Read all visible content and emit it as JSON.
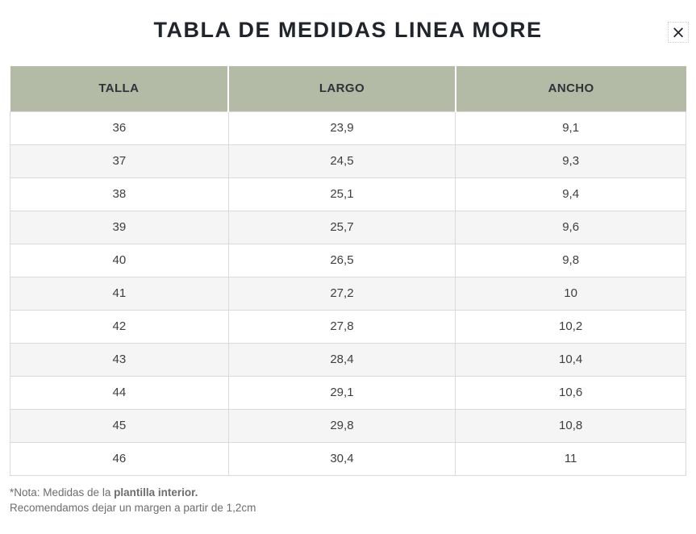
{
  "modal": {
    "title": "TABLA DE MEDIDAS LINEA MORE",
    "close_label": "×"
  },
  "table": {
    "headers": [
      "TALLA",
      "LARGO",
      "ANCHO"
    ],
    "rows": [
      [
        "36",
        "23,9",
        "9,1"
      ],
      [
        "37",
        "24,5",
        "9,3"
      ],
      [
        "38",
        "25,1",
        "9,4"
      ],
      [
        "39",
        "25,7",
        "9,6"
      ],
      [
        "40",
        "26,5",
        "9,8"
      ],
      [
        "41",
        "27,2",
        "10"
      ],
      [
        "42",
        "27,8",
        "10,2"
      ],
      [
        "43",
        "28,4",
        "10,4"
      ],
      [
        "44",
        "29,1",
        "10,6"
      ],
      [
        "45",
        "29,8",
        "10,8"
      ],
      [
        "46",
        "30,4",
        "11"
      ]
    ]
  },
  "footer": {
    "note_prefix": "*Nota: Medidas de la ",
    "note_bold": "plantilla interior.",
    "note_line2": "Recomendamos dejar un margen a partir de 1,2cm"
  },
  "colors": {
    "header_bg": "#b3baa6",
    "row_alt_bg": "#f5f5f5",
    "border": "#d9d9d9",
    "title_text": "#20242b",
    "header_text": "#2f3237",
    "cell_text": "#3c3e41",
    "note_text": "#6d6d6d"
  }
}
